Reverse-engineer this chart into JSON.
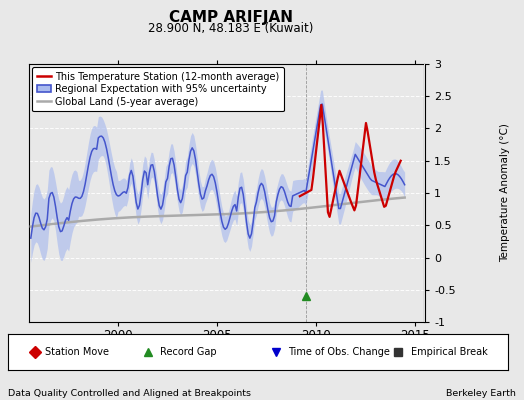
{
  "title": "CAMP ARIFJAN",
  "subtitle": "28.900 N, 48.183 E (Kuwait)",
  "ylabel": "Temperature Anomaly (°C)",
  "ylim": [
    -1.0,
    3.0
  ],
  "yticks": [
    -1.0,
    -0.5,
    0.0,
    0.5,
    1.0,
    1.5,
    2.0,
    2.5,
    3.0
  ],
  "xlim": [
    1995.5,
    2015.5
  ],
  "xticks": [
    2000,
    2005,
    2010,
    2015
  ],
  "footer_left": "Data Quality Controlled and Aligned at Breakpoints",
  "footer_right": "Berkeley Earth",
  "bg_color": "#e8e8e8",
  "plot_bg_color": "#e8e8e8",
  "grid_color": "#ffffff",
  "regional_color": "#4455cc",
  "regional_fill_color": "#aabbee",
  "station_color": "#cc0000",
  "global_color": "#aaaaaa",
  "legend_entries": [
    "This Temperature Station (12-month average)",
    "Regional Expectation with 95% uncertainty",
    "Global Land (5-year average)"
  ],
  "marker_legend": [
    {
      "label": "Station Move",
      "color": "#cc0000",
      "marker": "D"
    },
    {
      "label": "Record Gap",
      "color": "#228B22",
      "marker": "^"
    },
    {
      "label": "Time of Obs. Change",
      "color": "#0000cc",
      "marker": "v"
    },
    {
      "label": "Empirical Break",
      "color": "#333333",
      "marker": "s"
    }
  ],
  "record_gap_x": 2009.5,
  "record_gap_y": -0.6
}
